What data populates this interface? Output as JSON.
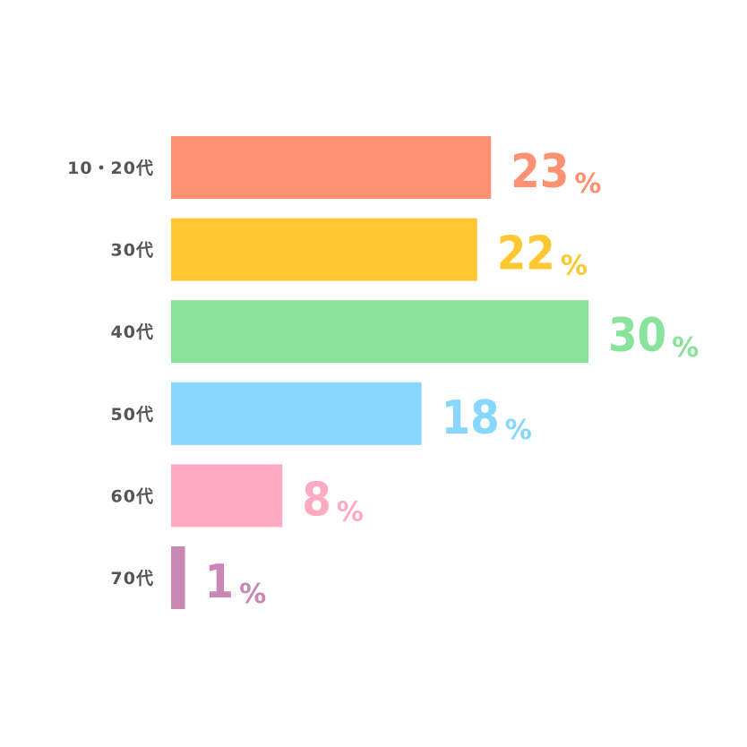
{
  "chart_data": {
    "type": "bar",
    "orientation": "horizontal",
    "categories": [
      "10・20代",
      "30代",
      "40代",
      "50代",
      "60代",
      "70代"
    ],
    "values": [
      23,
      22,
      30,
      18,
      8,
      1
    ],
    "value_labels": [
      "23",
      "22",
      "30",
      "18",
      "8",
      "1"
    ],
    "unit": "%",
    "colors": [
      "#ff9173",
      "#ffc832",
      "#8ae39b",
      "#87d7ff",
      "#ffaac3",
      "#c887b4"
    ],
    "xlim": [
      0,
      30
    ],
    "grid": false,
    "legend": "none"
  }
}
